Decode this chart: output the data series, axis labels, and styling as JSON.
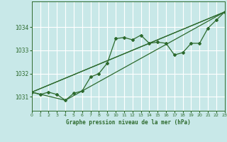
{
  "background_color": "#c8e8e8",
  "grid_color": "#ffffff",
  "line_color": "#2d6a2d",
  "title": "Graphe pression niveau de la mer (hPa)",
  "xlim": [
    0,
    23
  ],
  "ylim": [
    1030.4,
    1035.1
  ],
  "yticks": [
    1031,
    1032,
    1033,
    1034
  ],
  "xticks": [
    0,
    1,
    2,
    3,
    4,
    5,
    6,
    7,
    8,
    9,
    10,
    11,
    12,
    13,
    14,
    15,
    16,
    17,
    18,
    19,
    20,
    21,
    22,
    23
  ],
  "series1_x": [
    0,
    1,
    2,
    3,
    4,
    5,
    6,
    7,
    8,
    9,
    10,
    11,
    12,
    13,
    14,
    15,
    16,
    17,
    18,
    19,
    20,
    21,
    22,
    23
  ],
  "series1_y": [
    1031.2,
    1031.1,
    1031.2,
    1031.1,
    1030.85,
    1031.15,
    1031.25,
    1031.85,
    1032.0,
    1032.45,
    1033.5,
    1033.55,
    1033.45,
    1033.65,
    1033.3,
    1033.35,
    1033.3,
    1032.8,
    1032.9,
    1033.3,
    1033.3,
    1033.95,
    1034.3,
    1034.65
  ],
  "series2_x": [
    0,
    23
  ],
  "series2_y": [
    1031.2,
    1034.65
  ],
  "series3_x": [
    0,
    4,
    23
  ],
  "series3_y": [
    1031.2,
    1030.85,
    1034.65
  ],
  "series4_x": [
    0,
    14,
    23
  ],
  "series4_y": [
    1031.2,
    1033.3,
    1034.65
  ]
}
